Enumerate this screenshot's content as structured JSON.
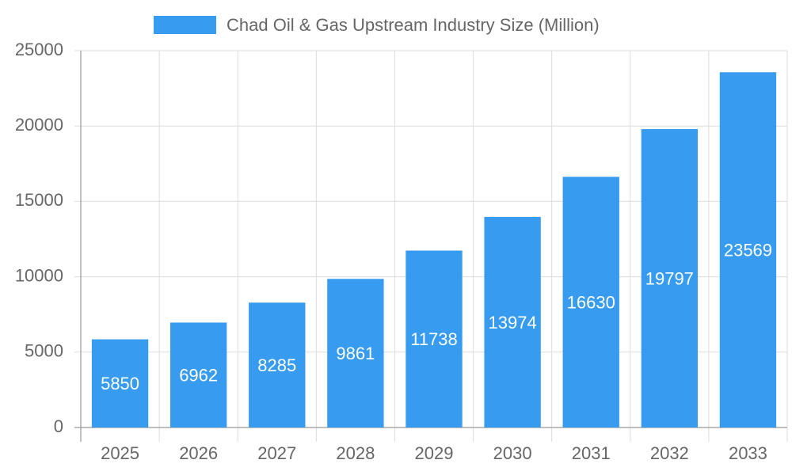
{
  "chart_data": {
    "type": "bar",
    "categories": [
      "2025",
      "2026",
      "2027",
      "2028",
      "2029",
      "2030",
      "2031",
      "2032",
      "2033"
    ],
    "series": [
      {
        "name": "Chad Oil & Gas Upstream Industry Size (Million)",
        "color": "#379cf0",
        "values": [
          5850,
          6962,
          8285,
          9861,
          11738,
          13974,
          16630,
          19797,
          23569
        ]
      }
    ],
    "ylim": [
      0,
      25000
    ],
    "yticks": [
      0,
      5000,
      10000,
      15000,
      20000,
      25000
    ],
    "grid": true,
    "legend": "top"
  }
}
